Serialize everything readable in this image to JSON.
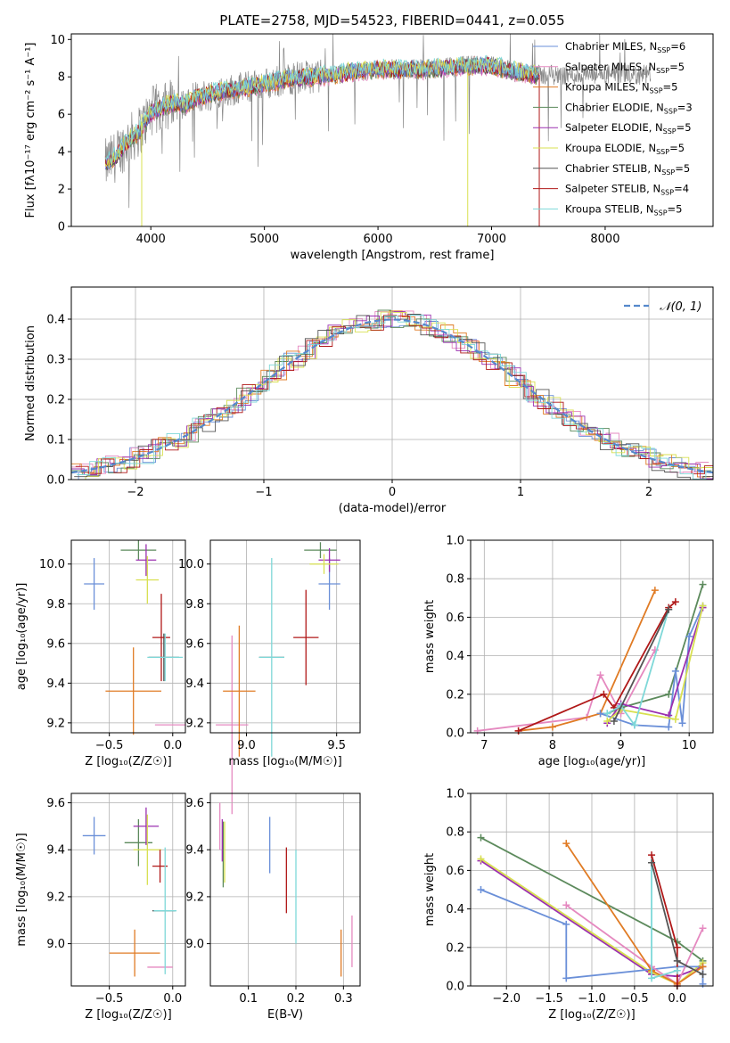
{
  "colors": {
    "chabrier_miles": "#6a8fd8",
    "salpeter_miles": "#e589c0",
    "kroupa_miles": "#e07b24",
    "chabrier_elodie": "#5c8a5c",
    "salpeter_elodie": "#9b30b0",
    "kroupa_elodie": "#d8e050",
    "chabrier_stelib": "#555555",
    "salpeter_stelib": "#b01818",
    "kroupa_stelib": "#7ed8d8",
    "data": "#888888",
    "normal": "#5588cc",
    "grid": "#b0b0b0"
  },
  "chart_data": [
    {
      "id": "spectrum",
      "type": "line",
      "title": "PLATE=2758, MJD=54523, FIBERID=0441, z=0.055",
      "xlabel": "wavelength [Angstrom, rest frame]",
      "ylabel": "Flux [fλ10⁻¹⁷ erg cm⁻² s⁻¹ A⁻¹]",
      "xlim": [
        3300,
        8950
      ],
      "ylim": [
        0,
        10.3
      ],
      "xticks": [
        "4000",
        "5000",
        "6000",
        "7000",
        "8000"
      ],
      "yticks": [
        "0",
        "2",
        "4",
        "6",
        "8",
        "10"
      ],
      "grid": false,
      "legend_position": "right",
      "legend": [
        {
          "label": "Chabrier MILES, N",
          "sub": "SSP",
          "suffix": "=6",
          "color_key": "chabrier_miles"
        },
        {
          "label": "Salpeter MILES, N",
          "sub": "SSP",
          "suffix": "=5",
          "color_key": "salpeter_miles"
        },
        {
          "label": "Kroupa MILES, N",
          "sub": "SSP",
          "suffix": "=5",
          "color_key": "kroupa_miles"
        },
        {
          "label": "Chabrier ELODIE, N",
          "sub": "SSP",
          "suffix": "=3",
          "color_key": "chabrier_elodie"
        },
        {
          "label": "Salpeter ELODIE, N",
          "sub": "SSP",
          "suffix": "=5",
          "color_key": "salpeter_elodie"
        },
        {
          "label": "Kroupa ELODIE, N",
          "sub": "SSP",
          "suffix": "=5",
          "color_key": "kroupa_elodie"
        },
        {
          "label": "Chabrier STELIB, N",
          "sub": "SSP",
          "suffix": "=5",
          "color_key": "chabrier_stelib"
        },
        {
          "label": "Salpeter STELIB, N",
          "sub": "SSP",
          "suffix": "=4",
          "color_key": "salpeter_stelib"
        },
        {
          "label": "Kroupa STELIB, N",
          "sub": "SSP",
          "suffix": "=5",
          "color_key": "kroupa_stelib"
        }
      ],
      "continuum": [
        [
          3600,
          3.3
        ],
        [
          3700,
          3.8
        ],
        [
          3800,
          4.6
        ],
        [
          3900,
          5.1
        ],
        [
          4000,
          6.1
        ],
        [
          4100,
          6.4
        ],
        [
          4200,
          6.6
        ],
        [
          4300,
          6.5
        ],
        [
          4400,
          6.9
        ],
        [
          4600,
          7.2
        ],
        [
          4800,
          7.4
        ],
        [
          5000,
          7.6
        ],
        [
          5200,
          7.9
        ],
        [
          5400,
          8.0
        ],
        [
          5600,
          8.1
        ],
        [
          5800,
          8.3
        ],
        [
          6000,
          8.4
        ],
        [
          6200,
          8.4
        ],
        [
          6400,
          8.4
        ],
        [
          6600,
          8.5
        ],
        [
          6800,
          8.6
        ],
        [
          7000,
          8.6
        ],
        [
          7200,
          8.3
        ],
        [
          7400,
          8.1
        ]
      ],
      "model_range": [
        3600,
        7420
      ]
    },
    {
      "id": "residuals",
      "type": "histogram",
      "xlabel": "(data-model)/error",
      "ylabel": "Normed distribution",
      "xlim": [
        -2.5,
        2.5
      ],
      "ylim": [
        0,
        0.48
      ],
      "xticks": [
        "−2",
        "−1",
        "0",
        "1",
        "2"
      ],
      "yticks": [
        "0.0",
        "0.1",
        "0.2",
        "0.3",
        "0.4"
      ],
      "grid": true,
      "legend_position": "top-right",
      "legend": [
        {
          "label": "𝒩(0, 1)",
          "color_key": "normal",
          "style": "dashed"
        }
      ],
      "bin_width": 0.1
    },
    {
      "id": "age_vs_Z",
      "type": "errorbar",
      "xlabel": "Z [log₁₀(Z/Z☉)]",
      "ylabel": "age [log₁₀(age/yr)]",
      "xlim": [
        -0.8,
        0.1
      ],
      "ylim": [
        9.15,
        10.12
      ],
      "xticks": [
        "−0.5",
        "0.0"
      ],
      "yticks": [
        "9.2",
        "9.4",
        "9.6",
        "9.8",
        "10.0"
      ],
      "grid": true,
      "points": [
        {
          "c": "chabrier_miles",
          "x": -0.62,
          "y": 9.9,
          "xe": 0.08,
          "ye": 0.13
        },
        {
          "c": "salpeter_miles",
          "x": -0.02,
          "y": 9.19,
          "xe": 0.12,
          "ye": 0.0
        },
        {
          "c": "kroupa_miles",
          "x": -0.31,
          "y": 9.36,
          "xe": 0.22,
          "ye": 0.22
        },
        {
          "c": "chabrier_elodie",
          "x": -0.27,
          "y": 10.07,
          "xe": 0.14,
          "ye": 0.05
        },
        {
          "c": "salpeter_elodie",
          "x": -0.21,
          "y": 10.02,
          "xe": 0.08,
          "ye": 0.08
        },
        {
          "c": "kroupa_elodie",
          "x": -0.2,
          "y": 9.92,
          "xe": 0.09,
          "ye": 0.12
        },
        {
          "c": "chabrier_stelib",
          "x": -0.07,
          "y": 9.53,
          "xe": 0.12,
          "ye": 0.12
        },
        {
          "c": "salpeter_stelib",
          "x": -0.09,
          "y": 9.63,
          "xe": 0.07,
          "ye": 0.22
        },
        {
          "c": "kroupa_stelib",
          "x": -0.06,
          "y": 9.53,
          "xe": 0.14,
          "ye": 0.12
        }
      ]
    },
    {
      "id": "age_vs_mass",
      "type": "errorbar",
      "xlabel": "mass [log₁₀(M/M☉)]",
      "ylabel": "",
      "xlim": [
        8.8,
        9.63
      ],
      "ylim": [
        9.15,
        10.12
      ],
      "xticks": [
        "9.0",
        "9.5"
      ],
      "yticks": [
        "9.2",
        "9.4",
        "9.6",
        "9.8",
        "10.0"
      ],
      "grid": true,
      "points": [
        {
          "c": "chabrier_miles",
          "x": 9.46,
          "y": 9.9,
          "xe": 0.06,
          "ye": 0.13
        },
        {
          "c": "salpeter_miles",
          "x": 8.92,
          "y": 9.19,
          "xe": 0.09,
          "ye": 0.45
        },
        {
          "c": "kroupa_miles",
          "x": 8.96,
          "y": 9.36,
          "xe": 0.09,
          "ye": 0.33
        },
        {
          "c": "chabrier_elodie",
          "x": 9.41,
          "y": 10.07,
          "xe": 0.09,
          "ye": 0.04
        },
        {
          "c": "salpeter_elodie",
          "x": 9.46,
          "y": 10.02,
          "xe": 0.06,
          "ye": 0.06
        },
        {
          "c": "kroupa_elodie",
          "x": 9.43,
          "y": 10.0,
          "xe": 0.08,
          "ye": 0.05
        },
        {
          "c": "chabrier_stelib",
          "x": 9.14,
          "y": 9.53,
          "xe": 0.07,
          "ye": 0.0
        },
        {
          "c": "salpeter_stelib",
          "x": 9.33,
          "y": 9.63,
          "xe": 0.07,
          "ye": 0.24
        },
        {
          "c": "kroupa_stelib",
          "x": 9.14,
          "y": 9.53,
          "xe": 0.07,
          "ye": 0.5
        }
      ]
    },
    {
      "id": "weight_vs_age",
      "type": "line",
      "xlabel": "age [log₁₀(age/yr)]",
      "ylabel": "mass weight",
      "xlim": [
        6.8,
        10.35
      ],
      "ylim": [
        0,
        1.0
      ],
      "xticks": [
        "7",
        "8",
        "9",
        "10"
      ],
      "yticks": [
        "0.0",
        "0.2",
        "0.4",
        "0.6",
        "0.8",
        "1.0"
      ],
      "grid": true,
      "series": [
        {
          "c": "salpeter_miles",
          "x": [
            6.9,
            8.5,
            8.7,
            9.0,
            9.5
          ],
          "y": [
            0.01,
            0.08,
            0.3,
            0.1,
            0.43
          ]
        },
        {
          "c": "kroupa_miles",
          "x": [
            7.5,
            8.0,
            8.7,
            9.5
          ],
          "y": [
            0.01,
            0.03,
            0.1,
            0.74
          ]
        },
        {
          "c": "salpeter_stelib",
          "x": [
            7.5,
            8.75,
            8.9,
            9.7,
            9.8
          ],
          "y": [
            0.01,
            0.2,
            0.13,
            0.65,
            0.68
          ]
        },
        {
          "c": "chabrier_elodie",
          "x": [
            8.8,
            9.0,
            9.7,
            10.2
          ],
          "y": [
            0.1,
            0.13,
            0.2,
            0.77
          ]
        },
        {
          "c": "chabrier_miles",
          "x": [
            8.7,
            9.2,
            9.7,
            9.8,
            9.9,
            10.0,
            10.2
          ],
          "y": [
            0.1,
            0.04,
            0.03,
            0.32,
            0.05,
            0.5,
            0.66
          ]
        },
        {
          "c": "salpeter_elodie",
          "x": [
            8.8,
            9.0,
            9.7,
            10.2
          ],
          "y": [
            0.05,
            0.15,
            0.09,
            0.65
          ]
        },
        {
          "c": "kroupa_elodie",
          "x": [
            8.8,
            9.0,
            9.8,
            10.2
          ],
          "y": [
            0.06,
            0.12,
            0.07,
            0.66
          ]
        },
        {
          "c": "kroupa_stelib",
          "x": [
            8.8,
            9.0,
            9.2,
            9.7
          ],
          "y": [
            0.1,
            0.14,
            0.04,
            0.64
          ]
        },
        {
          "c": "chabrier_stelib",
          "x": [
            8.9,
            9.7
          ],
          "y": [
            0.06,
            0.64
          ]
        }
      ]
    },
    {
      "id": "mass_vs_Z",
      "type": "errorbar",
      "xlabel": "Z [log₁₀(Z/Z☉)]",
      "ylabel": "mass [log₁₀(M/M☉)]",
      "xlim": [
        -0.8,
        0.1
      ],
      "ylim": [
        8.82,
        9.64
      ],
      "xticks": [
        "−0.5",
        "0.0"
      ],
      "yticks": [
        "9.0",
        "9.2",
        "9.4",
        "9.6"
      ],
      "grid": true,
      "points": [
        {
          "c": "chabrier_miles",
          "x": -0.62,
          "y": 9.46,
          "xe": 0.09,
          "ye": 0.08
        },
        {
          "c": "salpeter_miles",
          "x": -0.1,
          "y": 8.9,
          "xe": 0.1,
          "ye": 0.0
        },
        {
          "c": "kroupa_miles",
          "x": -0.3,
          "y": 8.96,
          "xe": 0.2,
          "ye": 0.1
        },
        {
          "c": "chabrier_elodie",
          "x": -0.27,
          "y": 9.43,
          "xe": 0.11,
          "ye": 0.1
        },
        {
          "c": "salpeter_elodie",
          "x": -0.21,
          "y": 9.5,
          "xe": 0.1,
          "ye": 0.08
        },
        {
          "c": "kroupa_elodie",
          "x": -0.2,
          "y": 9.4,
          "xe": 0.11,
          "ye": 0.15
        },
        {
          "c": "chabrier_stelib",
          "x": -0.07,
          "y": 9.14,
          "xe": 0.09,
          "ye": 0.0
        },
        {
          "c": "salpeter_stelib",
          "x": -0.1,
          "y": 9.33,
          "xe": 0.06,
          "ye": 0.07
        },
        {
          "c": "kroupa_stelib",
          "x": -0.06,
          "y": 9.14,
          "xe": 0.09,
          "ye": 0.27
        }
      ]
    },
    {
      "id": "mass_vs_ebv",
      "type": "errorbar",
      "xlabel": "E(B-V)",
      "ylabel": "",
      "xlim": [
        0.02,
        0.335
      ],
      "ylim": [
        8.82,
        9.64
      ],
      "xticks": [
        "0.1",
        "0.2",
        "0.3"
      ],
      "yticks": [
        "9.0",
        "9.2",
        "9.4",
        "9.6"
      ],
      "grid": true,
      "points": [
        {
          "c": "chabrier_miles",
          "x": 0.145,
          "y": 9.42,
          "xe": 0.0,
          "ye": 0.12
        },
        {
          "c": "salpeter_miles",
          "x": 0.04,
          "y": 9.5,
          "xe": 0.0,
          "ye": 0.1
        },
        {
          "c": "kroupa_miles",
          "x": 0.295,
          "y": 8.96,
          "xe": 0.0,
          "ye": 0.1
        },
        {
          "c": "chabrier_elodie",
          "x": 0.047,
          "y": 9.38,
          "xe": 0.0,
          "ye": 0.14
        },
        {
          "c": "salpeter_elodie",
          "x": 0.045,
          "y": 9.44,
          "xe": 0.0,
          "ye": 0.09
        },
        {
          "c": "kroupa_elodie",
          "x": 0.05,
          "y": 9.39,
          "xe": 0.0,
          "ye": 0.13
        },
        {
          "c": "chabrier_stelib",
          "x": 0.2,
          "y": 9.14,
          "xe": 0.0,
          "ye": 0.0
        },
        {
          "c": "salpeter_stelib",
          "x": 0.18,
          "y": 9.27,
          "xe": 0.0,
          "ye": 0.14
        },
        {
          "c": "kroupa_stelib",
          "x": 0.2,
          "y": 9.2,
          "xe": 0.0,
          "ye": 0.2
        },
        {
          "c": "salpeter_miles",
          "x": 0.318,
          "y": 9.01,
          "xe": 0.0,
          "ye": 0.11
        }
      ]
    },
    {
      "id": "weight_vs_Z",
      "type": "line",
      "xlabel": "Z [log₁₀(Z/Z☉)]",
      "ylabel": "mass weight",
      "xlim": [
        -2.42,
        0.42
      ],
      "ylim": [
        0,
        1.0
      ],
      "xticks": [
        "−2.0",
        "−1.5",
        "−1.0",
        "−0.5",
        "0.0"
      ],
      "yticks": [
        "0.0",
        "0.2",
        "0.4",
        "0.6",
        "0.8",
        "1.0"
      ],
      "grid": true,
      "series": [
        {
          "c": "chabrier_elodie",
          "x": [
            -2.3,
            0.0,
            0.3
          ],
          "y": [
            0.77,
            0.23,
            0.13
          ]
        },
        {
          "c": "salpeter_elodie",
          "x": [
            -2.3,
            -0.3,
            0.0,
            0.3
          ],
          "y": [
            0.65,
            0.06,
            0.05,
            0.1
          ]
        },
        {
          "c": "kroupa_elodie",
          "x": [
            -2.3,
            -0.3,
            0.0,
            0.3
          ],
          "y": [
            0.66,
            0.07,
            0.01,
            0.12
          ]
        },
        {
          "c": "chabrier_miles",
          "x": [
            -2.3,
            -1.3,
            -1.3,
            0.0,
            0.3,
            0.3
          ],
          "y": [
            0.5,
            0.32,
            0.04,
            0.1,
            0.1,
            0.01
          ]
        },
        {
          "c": "salpeter_miles",
          "x": [
            -1.3,
            -0.3,
            0.0,
            0.3
          ],
          "y": [
            0.42,
            0.1,
            0.01,
            0.3
          ]
        },
        {
          "c": "kroupa_miles",
          "x": [
            -1.3,
            -0.3,
            0.0,
            0.3
          ],
          "y": [
            0.74,
            0.08,
            0.01,
            0.1
          ]
        },
        {
          "c": "salpeter_stelib",
          "x": [
            -0.3,
            0.0,
            0.0
          ],
          "y": [
            0.68,
            0.2,
            0.0
          ]
        },
        {
          "c": "kroupa_stelib",
          "x": [
            -0.3,
            -0.3,
            0.0
          ],
          "y": [
            0.64,
            0.04,
            0.08
          ]
        },
        {
          "c": "chabrier_stelib",
          "x": [
            -0.3,
            0.0,
            0.3
          ],
          "y": [
            0.64,
            0.13,
            0.06
          ]
        }
      ]
    }
  ]
}
